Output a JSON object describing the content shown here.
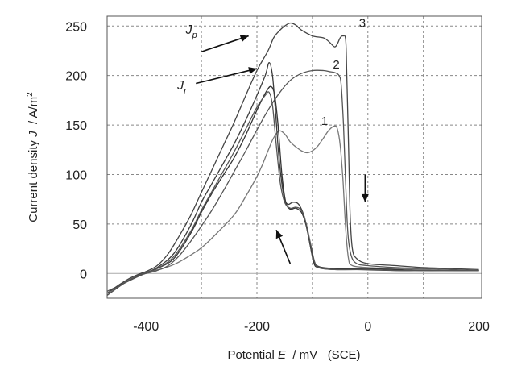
{
  "chart_data": {
    "type": "line",
    "xlabel": {
      "prefix": "Potential ",
      "var": "E",
      "suffix": "  / mV   (SCE)"
    },
    "ylabel": {
      "prefix": "Current density ",
      "var": "J",
      "suffix": "  / A/m",
      "sup": "2"
    },
    "xlim": [
      -470,
      205
    ],
    "ylim": [
      -25,
      260
    ],
    "xticks": [
      "-400",
      "-200",
      "0",
      "200"
    ],
    "xtick_values": [
      -400,
      -200,
      0,
      200
    ],
    "yticks": [
      "0",
      "50",
      "100",
      "150",
      "200",
      "250"
    ],
    "ytick_values": [
      0,
      50,
      100,
      150,
      200,
      250
    ],
    "grid": true,
    "series": [
      {
        "points": [
          [
            -470,
            -20
          ],
          [
            -450,
            -13
          ],
          [
            -430,
            -6
          ],
          [
            -410,
            -1
          ],
          [
            -400,
            1
          ],
          [
            -385,
            3
          ],
          [
            -370,
            5
          ],
          [
            -350,
            9
          ],
          [
            -330,
            15
          ],
          [
            -300,
            26
          ],
          [
            -270,
            42
          ],
          [
            -240,
            60
          ],
          [
            -220,
            78
          ],
          [
            -200,
            98
          ],
          [
            -190,
            110
          ],
          [
            -180,
            124
          ],
          [
            -170,
            137
          ],
          [
            -160,
            144
          ],
          [
            -150,
            141
          ],
          [
            -140,
            133
          ],
          [
            -130,
            128
          ],
          [
            -120,
            124
          ],
          [
            -110,
            122
          ],
          [
            -100,
            124
          ],
          [
            -90,
            129
          ],
          [
            -80,
            137
          ],
          [
            -70,
            145
          ],
          [
            -60,
            149
          ],
          [
            -55,
            146
          ],
          [
            -50,
            130
          ],
          [
            -45,
            95
          ],
          [
            -40,
            45
          ],
          [
            -35,
            15
          ],
          [
            -28,
            8
          ],
          [
            0,
            6
          ],
          [
            50,
            5
          ],
          [
            100,
            4
          ],
          [
            150,
            3
          ],
          [
            200,
            3
          ]
        ]
      },
      {
        "points": [
          [
            -470,
            -18
          ],
          [
            -440,
            -10
          ],
          [
            -410,
            -2
          ],
          [
            -400,
            0
          ],
          [
            -380,
            3
          ],
          [
            -360,
            8
          ],
          [
            -340,
            18
          ],
          [
            -320,
            32
          ],
          [
            -300,
            48
          ],
          [
            -280,
            65
          ],
          [
            -260,
            84
          ],
          [
            -240,
            104
          ],
          [
            -220,
            124
          ],
          [
            -200,
            145
          ],
          [
            -180,
            165
          ],
          [
            -160,
            182
          ],
          [
            -140,
            195
          ],
          [
            -120,
            202
          ],
          [
            -100,
            205
          ],
          [
            -80,
            205
          ],
          [
            -70,
            204
          ],
          [
            -60,
            203
          ],
          [
            -52,
            200
          ],
          [
            -48,
            190
          ],
          [
            -44,
            150
          ],
          [
            -40,
            90
          ],
          [
            -36,
            40
          ],
          [
            -30,
            18
          ],
          [
            -20,
            10
          ],
          [
            0,
            8
          ],
          [
            50,
            6
          ],
          [
            100,
            5
          ],
          [
            150,
            4
          ],
          [
            200,
            3
          ]
        ]
      },
      {
        "points": [
          [
            -470,
            -20
          ],
          [
            -450,
            -12
          ],
          [
            -430,
            -5
          ],
          [
            -410,
            0
          ],
          [
            -400,
            2
          ],
          [
            -380,
            8
          ],
          [
            -360,
            20
          ],
          [
            -340,
            38
          ],
          [
            -320,
            58
          ],
          [
            -300,
            82
          ],
          [
            -280,
            106
          ],
          [
            -260,
            130
          ],
          [
            -240,
            154
          ],
          [
            -220,
            180
          ],
          [
            -200,
            205
          ],
          [
            -180,
            225
          ],
          [
            -170,
            238
          ],
          [
            -160,
            245
          ],
          [
            -150,
            250
          ],
          [
            -140,
            253
          ],
          [
            -130,
            251
          ],
          [
            -120,
            246
          ],
          [
            -100,
            240
          ],
          [
            -80,
            238
          ],
          [
            -70,
            234
          ],
          [
            -60,
            229
          ],
          [
            -55,
            232
          ],
          [
            -50,
            238
          ],
          [
            -45,
            240
          ],
          [
            -40,
            236
          ],
          [
            -38,
            200
          ],
          [
            -35,
            130
          ],
          [
            -32,
            60
          ],
          [
            -28,
            25
          ],
          [
            -20,
            15
          ],
          [
            0,
            10
          ],
          [
            50,
            8
          ],
          [
            100,
            6
          ],
          [
            150,
            5
          ],
          [
            200,
            4
          ]
        ]
      },
      {
        "points": [
          [
            -470,
            -22
          ],
          [
            -440,
            -10
          ],
          [
            -410,
            -1
          ],
          [
            -400,
            1
          ],
          [
            -380,
            5
          ],
          [
            -350,
            15
          ],
          [
            -320,
            40
          ],
          [
            -300,
            62
          ],
          [
            -280,
            82
          ],
          [
            -260,
            100
          ],
          [
            -240,
            118
          ],
          [
            -220,
            140
          ],
          [
            -200,
            165
          ],
          [
            -185,
            182
          ],
          [
            -175,
            189
          ],
          [
            -168,
            180
          ],
          [
            -162,
            150
          ],
          [
            -155,
            100
          ],
          [
            -148,
            72
          ],
          [
            -140,
            65
          ],
          [
            -130,
            66
          ],
          [
            -120,
            62
          ],
          [
            -112,
            50
          ],
          [
            -105,
            32
          ],
          [
            -98,
            12
          ],
          [
            -90,
            6
          ],
          [
            -60,
            4
          ],
          [
            -20,
            4
          ],
          [
            50,
            3
          ],
          [
            100,
            3
          ],
          [
            150,
            3
          ],
          [
            200,
            3
          ]
        ]
      },
      {
        "points": [
          [
            -470,
            -22
          ],
          [
            -440,
            -10
          ],
          [
            -410,
            -1
          ],
          [
            -400,
            1
          ],
          [
            -380,
            6
          ],
          [
            -350,
            20
          ],
          [
            -320,
            48
          ],
          [
            -300,
            72
          ],
          [
            -280,
            92
          ],
          [
            -260,
            112
          ],
          [
            -240,
            132
          ],
          [
            -220,
            155
          ],
          [
            -200,
            180
          ],
          [
            -185,
            200
          ],
          [
            -178,
            213
          ],
          [
            -172,
            200
          ],
          [
            -166,
            160
          ],
          [
            -160,
            115
          ],
          [
            -152,
            80
          ],
          [
            -145,
            70
          ],
          [
            -135,
            72
          ],
          [
            -125,
            70
          ],
          [
            -115,
            58
          ],
          [
            -108,
            40
          ],
          [
            -100,
            18
          ],
          [
            -92,
            8
          ],
          [
            -60,
            5
          ],
          [
            0,
            5
          ],
          [
            50,
            4
          ],
          [
            100,
            3
          ],
          [
            150,
            3
          ],
          [
            200,
            3
          ]
        ]
      },
      {
        "points": [
          [
            -470,
            -22
          ],
          [
            -440,
            -10
          ],
          [
            -410,
            -1
          ],
          [
            -400,
            1
          ],
          [
            -380,
            5
          ],
          [
            -350,
            17
          ],
          [
            -320,
            42
          ],
          [
            -300,
            64
          ],
          [
            -280,
            84
          ],
          [
            -260,
            104
          ],
          [
            -240,
            124
          ],
          [
            -220,
            146
          ],
          [
            -200,
            168
          ],
          [
            -185,
            180
          ],
          [
            -178,
            183
          ],
          [
            -172,
            170
          ],
          [
            -166,
            135
          ],
          [
            -158,
            92
          ],
          [
            -150,
            72
          ],
          [
            -140,
            66
          ],
          [
            -130,
            67
          ],
          [
            -120,
            64
          ],
          [
            -112,
            52
          ],
          [
            -104,
            32
          ],
          [
            -96,
            12
          ],
          [
            -88,
            6
          ],
          [
            -60,
            4
          ],
          [
            0,
            4
          ],
          [
            50,
            3
          ],
          [
            100,
            3
          ],
          [
            150,
            3
          ],
          [
            200,
            3
          ]
        ]
      }
    ],
    "annotations": [
      {
        "id": "label-1",
        "text": "1",
        "x": -78,
        "y": 150
      },
      {
        "id": "label-2",
        "text": "2",
        "x": -57,
        "y": 207
      },
      {
        "id": "label-3",
        "text": "3",
        "x": -10,
        "y": 249
      },
      {
        "id": "label-jp",
        "text": "J",
        "sub": "p",
        "x": -318,
        "y": 242
      },
      {
        "id": "label-jr",
        "text": "J",
        "sub": "r",
        "x": -335,
        "y": 186
      }
    ],
    "arrows": [
      {
        "id": "arrow-jp",
        "from": [
          -300,
          224
        ],
        "to": [
          -215,
          240
        ]
      },
      {
        "id": "arrow-jr",
        "from": [
          -310,
          192
        ],
        "to": [
          -200,
          207
        ]
      },
      {
        "id": "arrow-down",
        "from": [
          -5,
          100
        ],
        "to": [
          -5,
          72
        ]
      },
      {
        "id": "arrow-up",
        "from": [
          -140,
          10
        ],
        "to": [
          -165,
          44
        ]
      }
    ]
  }
}
